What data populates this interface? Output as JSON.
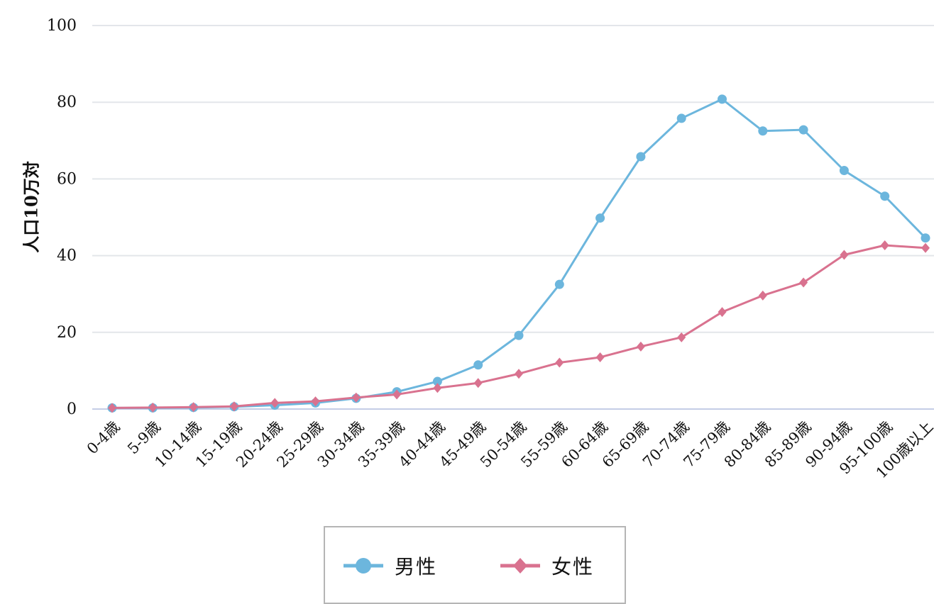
{
  "chart_data": {
    "type": "line",
    "categories": [
      "0-4歳",
      "5-9歳",
      "10-14歳",
      "15-19歳",
      "20-24歳",
      "25-29歳",
      "30-34歳",
      "35-39歳",
      "40-44歳",
      "45-49歳",
      "50-54歳",
      "55-59歳",
      "60-64歳",
      "65-69歳",
      "70-74歳",
      "75-79歳",
      "80-84歳",
      "85-89歳",
      "90-94歳",
      "95-100歳",
      "100歳以上"
    ],
    "series": [
      {
        "name": "男性",
        "color": "#6cb6dd",
        "marker": "circle",
        "values": [
          0.3,
          0.3,
          0.4,
          0.6,
          1.0,
          1.6,
          2.8,
          4.5,
          7.2,
          11.5,
          19.2,
          32.5,
          49.8,
          65.8,
          75.8,
          80.8,
          72.5,
          72.8,
          62.2,
          55.5,
          44.6
        ]
      },
      {
        "name": "女性",
        "color": "#d9728f",
        "marker": "diamond",
        "values": [
          0.3,
          0.4,
          0.5,
          0.7,
          1.6,
          2.0,
          3.0,
          3.8,
          5.5,
          6.8,
          9.2,
          12.1,
          13.5,
          16.3,
          18.7,
          25.3,
          29.6,
          33.0,
          40.2,
          42.7,
          42.0
        ]
      }
    ],
    "title": "",
    "xlabel": "",
    "ylabel": "人口10万対",
    "ylim": [
      0,
      100
    ],
    "yticks": [
      0,
      20,
      40,
      60,
      80,
      100
    ],
    "grid": true,
    "legend": "bottom-center"
  }
}
